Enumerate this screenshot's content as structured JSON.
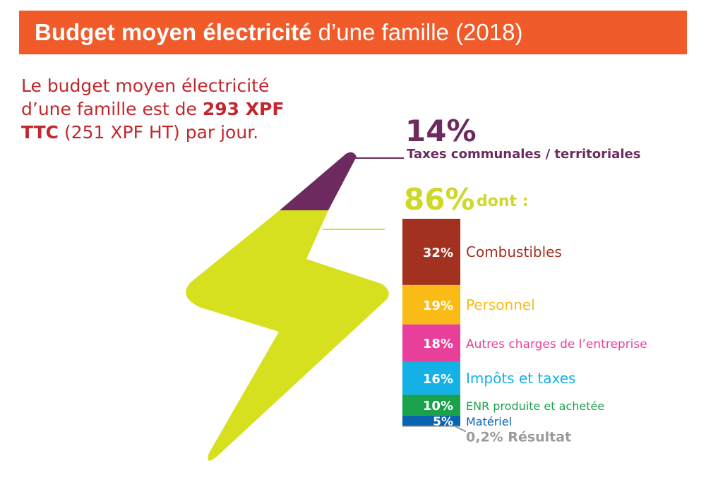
{
  "header": {
    "title_bold": "Budget moyen électricité",
    "title_rest": "d’une famille (2018)",
    "banner_color": "#f15a29"
  },
  "intro": {
    "line1": "Le budget moyen électricité",
    "line2_prefix": "d’une famille est de ",
    "line2_bold": "293 XPF",
    "line3_bold": "TTC",
    "line3_rest": " (251 XPF HT) par jour.",
    "color": "#c1272d"
  },
  "chart_data": {
    "type": "bar",
    "shares": [
      {
        "value": "14%",
        "label": "Taxes communales / territoriales",
        "color": "#6d2a5e"
      },
      {
        "value": "86%",
        "label": "dont :",
        "color": "#cfd82a"
      }
    ],
    "breakdown": [
      {
        "category": "Combustibles",
        "value": 32,
        "value_label": "32%",
        "color": "#a3311f"
      },
      {
        "category": "Personnel",
        "value": 19,
        "value_label": "19%",
        "color": "#fbbb16"
      },
      {
        "category": "Autres charges de l’entreprise",
        "value": 18,
        "value_label": "18%",
        "color": "#e8409a"
      },
      {
        "category": "Impôts et taxes",
        "value": 16,
        "value_label": "16%",
        "color": "#14b1e7"
      },
      {
        "category": "ENR produite et achetée",
        "value": 10,
        "value_label": "10%",
        "color": "#1aa14b"
      },
      {
        "category": "Matériel",
        "value": 5,
        "value_label": "5%",
        "color": "#0a63b0"
      },
      {
        "category": "Résultat",
        "value": 0.2,
        "value_label": "0,2%",
        "color": "#8e8e8e"
      }
    ],
    "bolt_colors": {
      "top": "#6d2a5e",
      "bottom": "#d7e01f"
    },
    "connector_color": "#d7e01f",
    "residual_label_color": "#9a9a9a"
  }
}
